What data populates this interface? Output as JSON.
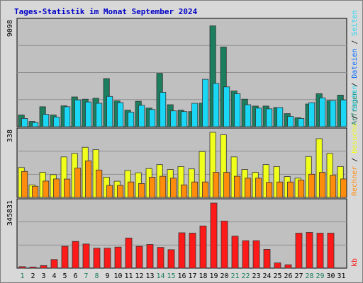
{
  "chart_data": {
    "type": "bar",
    "title": "Tages-Statistik im Monat September 2024",
    "days": [
      "1",
      "2",
      "3",
      "4",
      "5",
      "6",
      "7",
      "8",
      "9",
      "10",
      "11",
      "12",
      "13",
      "14",
      "15",
      "16",
      "17",
      "18",
      "19",
      "20",
      "21",
      "22",
      "23",
      "24",
      "25",
      "26",
      "27",
      "28",
      "29",
      "30",
      "31"
    ],
    "weekend_days": [
      "1",
      "7",
      "8",
      "14",
      "15",
      "21",
      "22",
      "28",
      "29"
    ],
    "colors": {
      "title": "#0000c8",
      "panel_bg": "#c0c0c0",
      "frame_bg": "#d8d8d8",
      "anfragen": "#1b7e5e",
      "dateien": "#1ad7f5",
      "seiten": "#f0ff1c",
      "besuche": "#ff8c0a",
      "kbytes": "#ff1a1a",
      "weekday_label": "#000000",
      "weekend_label": "#1b7e5e",
      "grid": "#8f8f8f"
    },
    "panels": [
      {
        "ymax_label": "9098",
        "ymax": 9098,
        "side_labels": [
          {
            "text": "Anfragen",
            "color": "#1b7e5e"
          },
          {
            "text": " / ",
            "color": "#000000"
          },
          {
            "text": "Dateien",
            "color": "#0066ff"
          },
          {
            "text": " / ",
            "color": "#000000"
          },
          {
            "text": "Seiten",
            "color": "#1ad7f5"
          }
        ],
        "series": [
          {
            "name": "Anfragen",
            "color": "#1b7e5e",
            "values": [
              1020,
              460,
              1740,
              1020,
              1820,
              2600,
              2400,
              2480,
              4200,
              2250,
              1440,
              2220,
              1620,
              4660,
              1920,
              1440,
              1320,
              2060,
              8820,
              6960,
              3120,
              2400,
              1800,
              1800,
              1680,
              1140,
              780,
              1980,
              2880,
              2280,
              2760
            ]
          },
          {
            "name": "Dateien",
            "color": "#1ad7f5",
            "values": [
              720,
              360,
              1080,
              840,
              1740,
              2340,
              2160,
              2040,
              2640,
              2100,
              1260,
              1860,
              1500,
              3000,
              1380,
              1320,
              2040,
              4140,
              3780,
              3480,
              2880,
              1920,
              1620,
              1560,
              1680,
              900,
              720,
              2100,
              2520,
              2280,
              2340
            ]
          }
        ]
      },
      {
        "ymax_label": "338",
        "ymax": 338,
        "side_labels": [
          {
            "text": "Rechner",
            "color": "#ff8c0a"
          },
          {
            "text": " / ",
            "color": "#000000"
          },
          {
            "text": "Besuche",
            "color": "#f0ff1c"
          },
          {
            "text": " / ",
            "color": "#000000"
          },
          {
            "text": "Seiten",
            "color": "#1ad7f5"
          }
        ],
        "series": [
          {
            "name": "Seiten",
            "color": "#f0ff1c",
            "values": [
              155,
              65,
              130,
              118,
              210,
              228,
              260,
              248,
              105,
              84,
              140,
              128,
              150,
              170,
              145,
              160,
              148,
              238,
              338,
              325,
              210,
              145,
              130,
              170,
              160,
              108,
              100,
              212,
              305,
              228,
              160
            ]
          },
          {
            "name": "Besuche",
            "color": "#ff8c0a",
            "values": [
              135,
              58,
              85,
              96,
              95,
              152,
              190,
              142,
              62,
              62,
              80,
              72,
              105,
              110,
              100,
              65,
              80,
              80,
              130,
              130,
              110,
              100,
              100,
              78,
              80,
              80,
              90,
              120,
              130,
              115,
              96
            ]
          }
        ]
      },
      {
        "ymax_label": "345831",
        "ymax": 345831,
        "side_labels": [
          {
            "text": "kb",
            "color": "#ff1a1a"
          }
        ],
        "series": [
          {
            "name": "kb",
            "color": "#ff1a1a",
            "values": [
              8000,
              6000,
              14000,
              46000,
              116000,
              142000,
              128000,
              106000,
              106000,
              112000,
              160000,
              116000,
              126000,
              110000,
              98000,
              188000,
              186000,
              224000,
              345831,
              250000,
              170000,
              146000,
              146000,
              100000,
              28000,
              18000,
              186000,
              190000,
              186000,
              186000,
              0
            ]
          }
        ]
      }
    ]
  }
}
